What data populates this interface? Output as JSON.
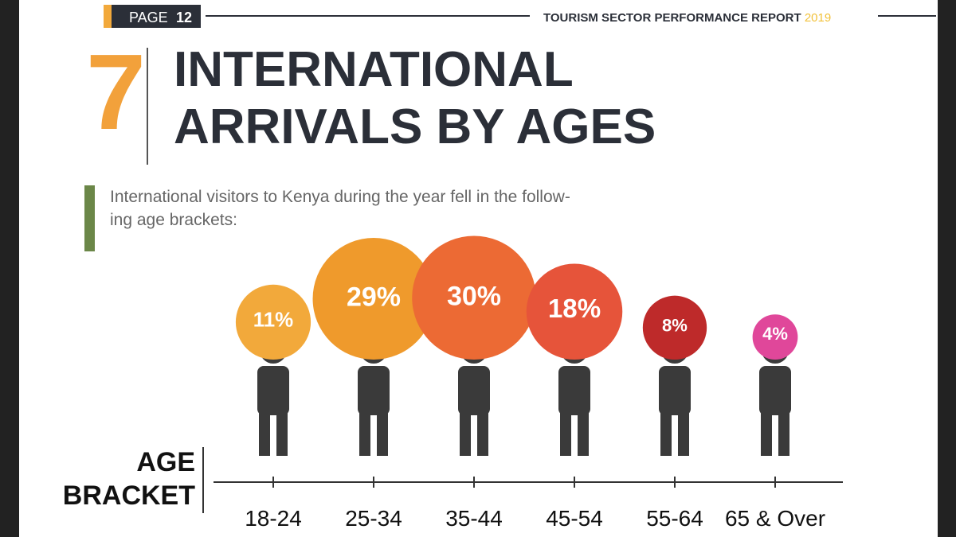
{
  "header": {
    "page_label": "PAGE",
    "page_number": "12",
    "report": "TOURISM SECTOR PERFORMANCE REPORT",
    "year": "2019"
  },
  "section_number": "7",
  "intro": [
    "International visitors to Kenya during the year fell in the follow-",
    "ing age brackets:"
  ],
  "chart_data": {
    "type": "bubble",
    "title": [
      "INTERNATIONAL",
      "ARRIVALS BY AGES"
    ],
    "x_label": [
      "AGE",
      "BRACKET"
    ],
    "categories": [
      "18-24",
      "25-34",
      "35-44",
      "45-54",
      "55-64",
      "65 & Over"
    ],
    "values": [
      11,
      29,
      30,
      18,
      8,
      4
    ],
    "value_labels": [
      "11%",
      "29%",
      "30%",
      "18%",
      "8%",
      "4%"
    ],
    "colors": [
      "#f2a93b",
      "#ef9a2c",
      "#ec6a34",
      "#e6543a",
      "#be2a2a",
      "#e0479a"
    ]
  }
}
